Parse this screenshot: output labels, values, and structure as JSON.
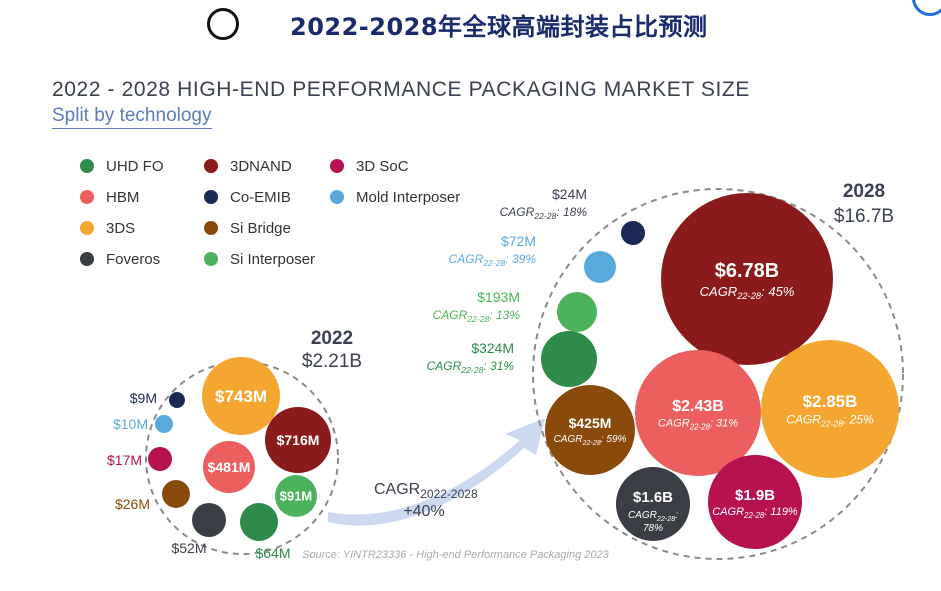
{
  "header": {
    "title": "2022-2028年全球高端封装占比预测"
  },
  "chart_data": {
    "type": "bubble",
    "title": "2022 - 2028 HIGH-END PERFORMANCE PACKAGING MARKET SIZE",
    "subtitle": "Split by technology",
    "legend": [
      {
        "name": "UHD FO",
        "color": "#2e8b4a"
      },
      {
        "name": "3DNAND",
        "color": "#8b1a1a"
      },
      {
        "name": "3D SoC",
        "color": "#b5124f"
      },
      {
        "name": "HBM",
        "color": "#ec5f5f"
      },
      {
        "name": "Co-EMIB",
        "color": "#1b2a55"
      },
      {
        "name": "Mold Interposer",
        "color": "#5aa9dd"
      },
      {
        "name": "3DS",
        "color": "#f5a631"
      },
      {
        "name": "Si Bridge",
        "color": "#8a4a0c"
      },
      {
        "name": "Foveros",
        "color": "#3a3d44"
      },
      {
        "name": "Si Interposer",
        "color": "#4cb35c"
      }
    ],
    "years": [
      {
        "year": "2022",
        "total": "$2.21B"
      },
      {
        "year": "2028",
        "total": "$16.7B"
      }
    ],
    "series": [
      {
        "name": "3DNAND",
        "y2022": "$716M",
        "y2028": "$6.78B",
        "cagr": "45%"
      },
      {
        "name": "3DS",
        "y2022": "$743M",
        "y2028": "$2.85B",
        "cagr": "25%"
      },
      {
        "name": "HBM",
        "y2022": "$481M",
        "y2028": "$2.43B",
        "cagr": "31%"
      },
      {
        "name": "3D SoC",
        "y2022": "$17M",
        "y2028": "$1.9B",
        "cagr": "119%"
      },
      {
        "name": "Foveros",
        "y2022": "$52M",
        "y2028": "$1.6B",
        "cagr": "78%"
      },
      {
        "name": "Si Bridge",
        "y2022": "$26M",
        "y2028": "$425M",
        "cagr": "59%"
      },
      {
        "name": "UHD FO",
        "y2022": "$64M",
        "y2028": "$324M",
        "cagr": "31%"
      },
      {
        "name": "Si Interposer",
        "y2022": "$91M",
        "y2028": "$193M",
        "cagr": "13%"
      },
      {
        "name": "Mold Interposer",
        "y2022": "$10M",
        "y2028": "$72M",
        "cagr": "39%"
      },
      {
        "name": "Co-EMIB",
        "y2022": "$9M",
        "y2028": "$24M",
        "cagr": "18%"
      }
    ],
    "overall_cagr": {
      "label": "CAGR",
      "subscript": "2022-2028",
      "value": "+40%"
    },
    "cagr_prefix": "CAGR",
    "cagr_subscript": "22-28",
    "source": "Source: YINTR23336 - High-end Performance Packaging 2023"
  }
}
